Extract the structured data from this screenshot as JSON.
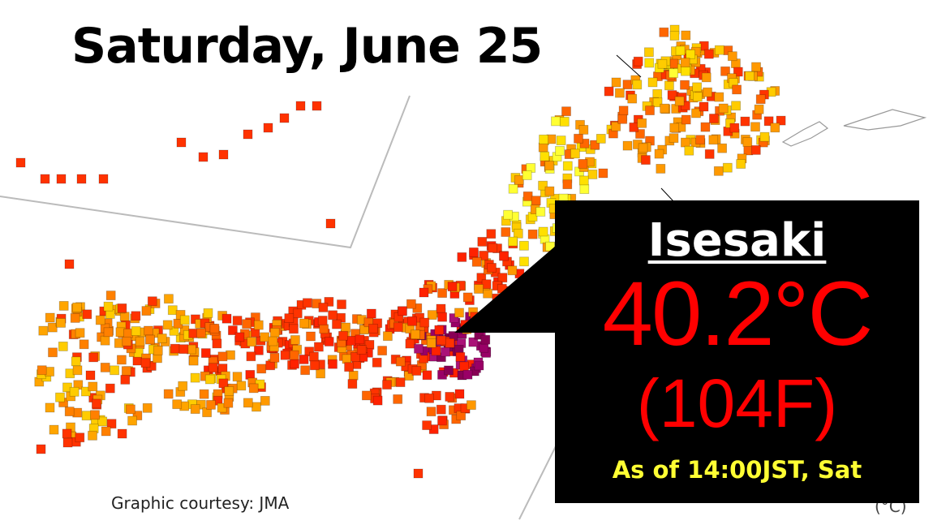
{
  "header": {
    "title": "Saturday, June 25"
  },
  "callout": {
    "place": "Isesaki",
    "temperature_c": "40.2°C",
    "temperature_f": "(104F)",
    "as_of": "As of 14:00JST, Sat"
  },
  "footer": {
    "credit": "Graphic courtesy: JMA",
    "legend_unit": "(°C)"
  }
}
